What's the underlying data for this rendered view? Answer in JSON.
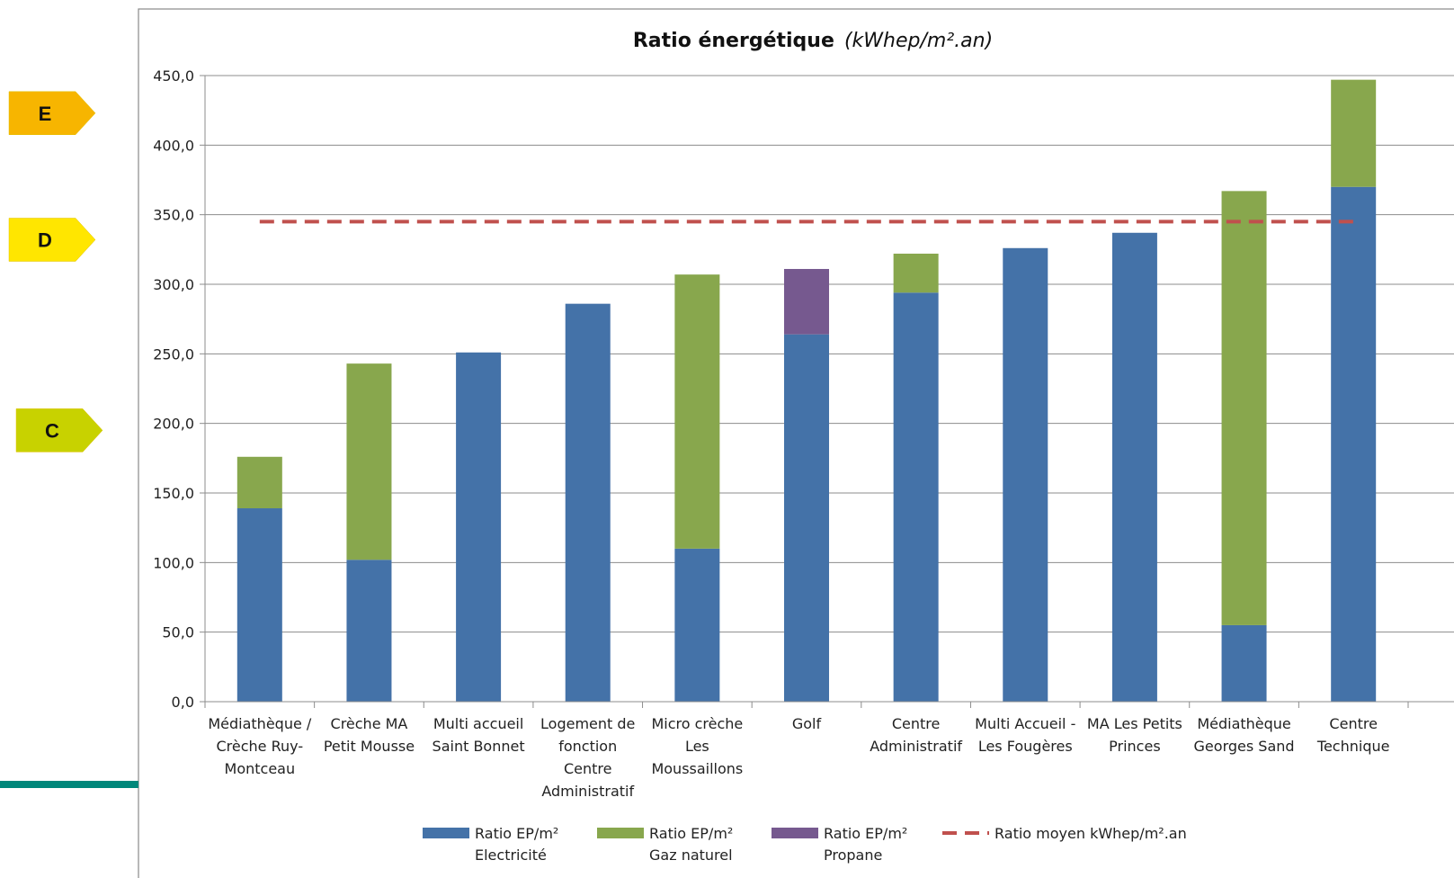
{
  "chart_data": {
    "type": "bar",
    "stacked": true,
    "title": "Ratio énergétique",
    "title_unit": "(kWhep/m².an)",
    "xlabel": "",
    "ylabel": "",
    "ylim": [
      0,
      450
    ],
    "y_ticks": [
      "0,0",
      "50,0",
      "100,0",
      "150,0",
      "200,0",
      "250,0",
      "300,0",
      "350,0",
      "400,0",
      "450,0"
    ],
    "grid": true,
    "legend_position": "bottom",
    "categories": [
      [
        "Médiathèque /",
        "Crèche Ruy-",
        "Montceau"
      ],
      [
        "Crèche MA",
        "Petit Mousse"
      ],
      [
        "Multi accueil",
        "Saint Bonnet"
      ],
      [
        "Logement de",
        "fonction",
        "Centre",
        "Administratif"
      ],
      [
        "Micro crèche",
        "Les",
        "Moussaillons"
      ],
      [
        "Golf"
      ],
      [
        "Centre",
        "Administratif"
      ],
      [
        "Multi Accueil -",
        "Les Fougères"
      ],
      [
        "MA Les Petits",
        "Princes"
      ],
      [
        "Médiathèque",
        "Georges Sand"
      ],
      [
        "Centre",
        "Technique"
      ]
    ],
    "series": [
      {
        "name": [
          "Ratio EP/m²",
          "Electricité"
        ],
        "color": "#4472a8",
        "values": [
          139,
          102,
          251,
          286,
          110,
          264,
          294,
          326,
          337,
          55,
          370
        ]
      },
      {
        "name": [
          "Ratio EP/m²",
          "Gaz naturel"
        ],
        "color": "#88a74d",
        "values": [
          37,
          141,
          0,
          0,
          197,
          0,
          28,
          0,
          0,
          312,
          77
        ]
      },
      {
        "name": [
          "Ratio EP/m²",
          "Propane"
        ],
        "color": "#76598f",
        "values": [
          0,
          0,
          0,
          0,
          0,
          47,
          0,
          0,
          0,
          0,
          0
        ]
      }
    ],
    "average_line": {
      "name": "Ratio moyen kWhep/m².an",
      "value": 345,
      "color": "#c0504d"
    }
  },
  "energy_badges": [
    {
      "label": "E",
      "color": "#f7b500",
      "y_value": 423
    },
    {
      "label": "D",
      "color": "#ffe600",
      "y_value": 332
    },
    {
      "label": "C",
      "color": "#c8d200",
      "y_value": 195
    }
  ],
  "accent_bar_color": "#00877a"
}
